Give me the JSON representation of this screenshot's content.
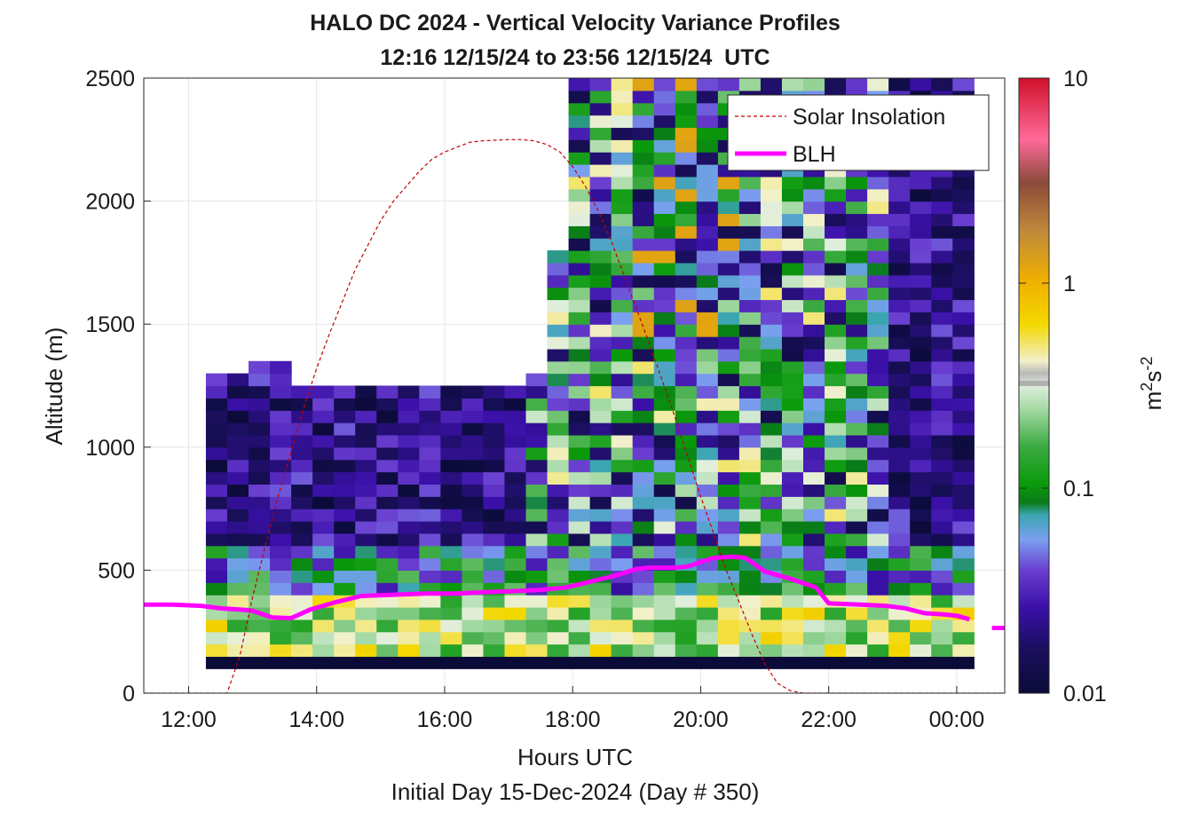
{
  "chart_data": {
    "type": "heatmap",
    "title": "HALO DC 2024 - Vertical Velocity Variance Profiles",
    "subtitle": "12:16 12/15/24 to 23:56 12/15/24  UTC",
    "xlabel": "Hours UTC",
    "xlabel2": "Initial Day 15-Dec-2024 (Day # 350)",
    "ylabel": "Altitude (m)",
    "xlim_hours": [
      11.3,
      24.75
    ],
    "ylim": [
      0,
      2500
    ],
    "x_ticks": [
      {
        "v": 12,
        "label": "12:00"
      },
      {
        "v": 14,
        "label": "14:00"
      },
      {
        "v": 16,
        "label": "16:00"
      },
      {
        "v": 18,
        "label": "18:00"
      },
      {
        "v": 20,
        "label": "20:00"
      },
      {
        "v": 22,
        "label": "22:00"
      },
      {
        "v": 24,
        "label": "00:00"
      }
    ],
    "y_ticks": [
      {
        "v": 0,
        "label": "0"
      },
      {
        "v": 500,
        "label": "500"
      },
      {
        "v": 1000,
        "label": "1000"
      },
      {
        "v": 1500,
        "label": "1500"
      },
      {
        "v": 2000,
        "label": "2000"
      },
      {
        "v": 2500,
        "label": "2500"
      }
    ],
    "grid": true,
    "colorbar": {
      "label": "m2s-2",
      "scale": "log",
      "range": [
        0.01,
        10
      ],
      "ticks": [
        {
          "v": 0.01,
          "label": "0.01"
        },
        {
          "v": 0.1,
          "label": "0.1"
        },
        {
          "v": 1,
          "label": "1"
        },
        {
          "v": 10,
          "label": "10"
        }
      ]
    },
    "heatmap": {
      "x_start_hours": 12.27,
      "x_step_hours": 0.3333,
      "altitude_bottom_m": 100,
      "altitude_step_m": 50,
      "columns": 36,
      "profile_top_m": [
        1290,
        1290,
        1340,
        1340,
        1240,
        1250,
        1250,
        1250,
        1250,
        1250,
        1250,
        1250,
        1250,
        1250,
        1250,
        1300,
        1800,
        2500,
        2500,
        2500,
        2500,
        2500,
        2500,
        2500,
        2500,
        2500,
        2500,
        2500,
        2500,
        2500,
        2500,
        2500,
        2500,
        2500,
        2500,
        2500
      ],
      "rows_min_log10_by_band": [
        {
          "from_m": 100,
          "to_m": 150,
          "log10": -2.0
        },
        {
          "from_m": 150,
          "to_m": 360,
          "log10": -0.55
        },
        {
          "from_m": 360,
          "to_m": 600,
          "log10": -1.2
        },
        {
          "from_m": 600,
          "to_m": 1300,
          "log10": -1.9
        }
      ]
    },
    "series": [
      {
        "name": "BLH",
        "color": "#ff00ff",
        "x": [
          11.3,
          11.75,
          12.2,
          12.5,
          12.8,
          13.0,
          13.3,
          13.6,
          13.9,
          14.3,
          14.7,
          15.2,
          15.7,
          16.2,
          16.6,
          17.1,
          17.5,
          17.9,
          18.3,
          18.7,
          19.0,
          19.2,
          19.6,
          19.8,
          20.2,
          20.5,
          20.7,
          21.0,
          21.4,
          21.8,
          22.0,
          22.5,
          22.9,
          23.2,
          23.5,
          23.8,
          24.0,
          24.2
        ],
        "y": [
          360,
          360,
          355,
          345,
          340,
          335,
          308,
          305,
          340,
          370,
          395,
          400,
          405,
          405,
          410,
          415,
          420,
          430,
          455,
          480,
          505,
          510,
          510,
          515,
          550,
          555,
          550,
          495,
          465,
          430,
          365,
          360,
          355,
          345,
          325,
          320,
          315,
          300
        ]
      },
      {
        "name": "BLH",
        "color": "#ff00ff",
        "x": [
          24.55,
          24.75
        ],
        "y": [
          265,
          265
        ]
      },
      {
        "name": "Solar Insolation",
        "color": "#c00000",
        "x": [
          11.3,
          11.6,
          11.9,
          12.2,
          12.4,
          12.6,
          12.8,
          13.0,
          13.2,
          13.4,
          13.6,
          13.8,
          14.0,
          14.2,
          14.4,
          14.6,
          14.8,
          15.0,
          15.2,
          15.4,
          15.6,
          15.8,
          16.0,
          16.2,
          16.4,
          16.6,
          16.8,
          17.0,
          17.2,
          17.4,
          17.6,
          17.8,
          18.0,
          18.2,
          18.4,
          18.6,
          18.8,
          19.0,
          19.2,
          19.4,
          19.6,
          19.8,
          20.0,
          20.2,
          20.4,
          20.6,
          20.8,
          21.0,
          21.2,
          21.4,
          21.6,
          21.8,
          22.0,
          22.5,
          23.0,
          23.5,
          24.0,
          24.5,
          24.75
        ],
        "y": [
          0,
          0,
          0,
          0,
          0,
          0,
          150,
          390,
          600,
          800,
          980,
          1160,
          1320,
          1460,
          1590,
          1720,
          1820,
          1920,
          2000,
          2060,
          2120,
          2170,
          2200,
          2220,
          2240,
          2245,
          2248,
          2250,
          2250,
          2245,
          2230,
          2200,
          2140,
          2060,
          1960,
          1840,
          1700,
          1560,
          1420,
          1270,
          1120,
          960,
          800,
          650,
          500,
          370,
          240,
          120,
          40,
          10,
          0,
          0,
          0,
          0,
          0,
          0,
          0,
          0,
          0
        ]
      }
    ],
    "legend": {
      "placement": "top-right",
      "entries": [
        "Solar Insolation",
        "BLH"
      ]
    }
  }
}
